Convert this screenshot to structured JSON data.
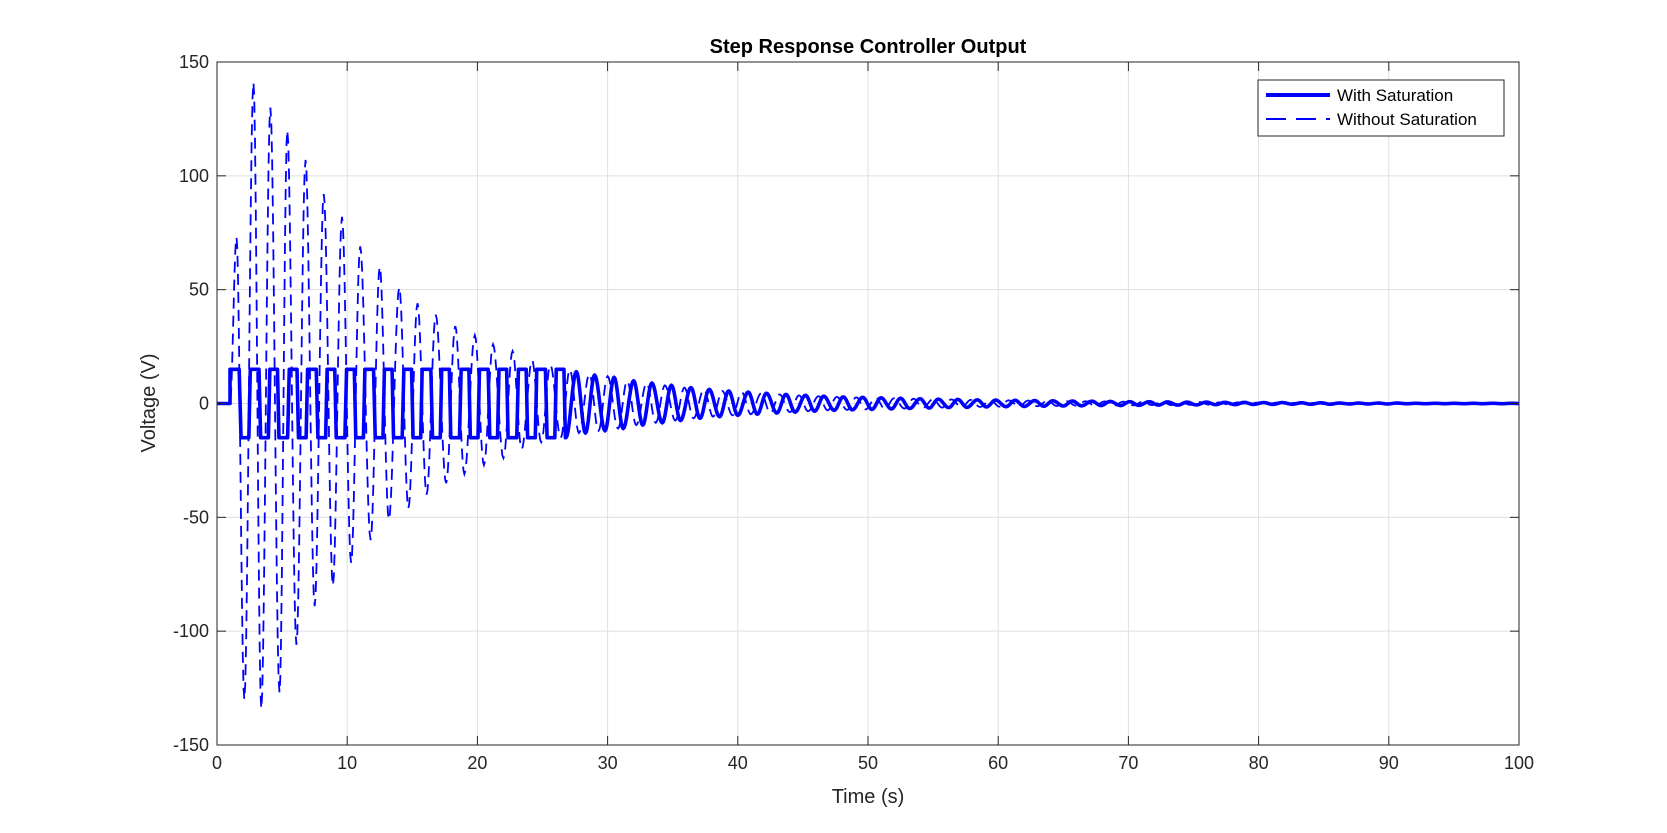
{
  "chart_data": {
    "type": "line",
    "title": "Step Response Controller Output",
    "xlabel": "Time (s)",
    "ylabel": "Voltage (V)",
    "xlim": [
      0,
      100
    ],
    "ylim": [
      -150,
      150
    ],
    "xticks": [
      0,
      10,
      20,
      30,
      40,
      50,
      60,
      70,
      80,
      90,
      100
    ],
    "yticks": [
      -150,
      -100,
      -50,
      0,
      50,
      100,
      150
    ],
    "grid": true,
    "legend_position": "top-right",
    "line_color": "#0000ff",
    "series": [
      {
        "name": "With Saturation",
        "style": "solid",
        "note_saturation_limit": 15,
        "peaks": [
          [
            1.0,
            15
          ],
          [
            1.9,
            -15
          ],
          [
            2.6,
            15
          ],
          [
            3.4,
            -15
          ],
          [
            4.1,
            15
          ],
          [
            4.8,
            -15
          ],
          [
            5.6,
            15
          ],
          [
            6.3,
            -15
          ],
          [
            7.0,
            15
          ],
          [
            7.8,
            -15
          ],
          [
            8.5,
            15
          ],
          [
            9.2,
            -15
          ],
          [
            10.0,
            15
          ],
          [
            10.7,
            -15
          ],
          [
            11.4,
            15
          ],
          [
            12.2,
            -15
          ],
          [
            12.9,
            15
          ],
          [
            13.6,
            -15
          ],
          [
            14.4,
            15
          ],
          [
            15.1,
            -15
          ],
          [
            15.8,
            15
          ],
          [
            16.6,
            -15
          ],
          [
            17.3,
            15
          ],
          [
            18.0,
            -15
          ],
          [
            18.8,
            15
          ],
          [
            19.5,
            -15
          ],
          [
            20.2,
            15
          ],
          [
            21.0,
            -15
          ],
          [
            21.7,
            15
          ],
          [
            22.4,
            -15
          ],
          [
            23.2,
            15
          ],
          [
            23.9,
            -15
          ],
          [
            24.6,
            15
          ],
          [
            25.4,
            -15
          ],
          [
            26.1,
            15
          ],
          [
            26.8,
            -15
          ],
          [
            27.6,
            14
          ],
          [
            28.3,
            -13
          ],
          [
            29.0,
            12.5
          ],
          [
            29.8,
            -12
          ],
          [
            30.5,
            11.5
          ],
          [
            31.2,
            -11
          ],
          [
            32.0,
            10
          ],
          [
            32.7,
            -9.5
          ],
          [
            33.4,
            9
          ],
          [
            34.2,
            -8.5
          ],
          [
            34.9,
            8
          ],
          [
            35.6,
            -7.5
          ],
          [
            36.4,
            7
          ],
          [
            37.1,
            -6.5
          ],
          [
            37.8,
            6.2
          ],
          [
            38.6,
            -5.8
          ],
          [
            39.3,
            5.5
          ],
          [
            40.0,
            -5.2
          ],
          [
            40.8,
            5
          ],
          [
            41.5,
            -4.7
          ],
          [
            42.2,
            4.5
          ],
          [
            43.0,
            -4.2
          ],
          [
            43.7,
            4
          ],
          [
            44.4,
            -3.8
          ],
          [
            45.2,
            3.6
          ],
          [
            45.9,
            -3.4
          ],
          [
            46.6,
            3.2
          ],
          [
            47.4,
            -3
          ],
          [
            48.1,
            2.9
          ],
          [
            48.8,
            -2.8
          ],
          [
            49.6,
            2.7
          ],
          [
            50.3,
            -2.6
          ],
          [
            51.0,
            2.5
          ],
          [
            51.8,
            -2.4
          ],
          [
            52.5,
            2.3
          ],
          [
            53.2,
            -2.2
          ],
          [
            54.0,
            2.1
          ],
          [
            54.7,
            -2.0
          ],
          [
            55.4,
            1.9
          ],
          [
            56.2,
            -1.8
          ],
          [
            56.9,
            1.8
          ],
          [
            57.6,
            -1.7
          ],
          [
            58.4,
            1.6
          ],
          [
            59.1,
            -1.5
          ],
          [
            59.8,
            1.5
          ],
          [
            60.6,
            -1.4
          ],
          [
            61.3,
            1.4
          ],
          [
            62.0,
            -1.3
          ],
          [
            62.8,
            1.3
          ],
          [
            63.5,
            -1.2
          ],
          [
            64.2,
            1.2
          ],
          [
            65.0,
            -1.1
          ],
          [
            65.7,
            1.1
          ],
          [
            66.4,
            -1.0
          ],
          [
            67.2,
            1.0
          ],
          [
            67.9,
            -0.9
          ],
          [
            68.6,
            0.9
          ],
          [
            69.4,
            -0.9
          ],
          [
            70.1,
            0.8
          ],
          [
            70.8,
            -0.8
          ],
          [
            71.6,
            0.8
          ],
          [
            72.3,
            -0.7
          ],
          [
            73.0,
            0.7
          ],
          [
            73.8,
            -0.7
          ],
          [
            74.5,
            0.6
          ],
          [
            75.2,
            -0.6
          ],
          [
            76.0,
            0.6
          ],
          [
            76.7,
            -0.5
          ],
          [
            77.4,
            0.5
          ],
          [
            78.2,
            -0.5
          ],
          [
            78.9,
            0.5
          ],
          [
            79.6,
            -0.4
          ],
          [
            80.4,
            0.4
          ],
          [
            81.1,
            -0.4
          ],
          [
            81.8,
            0.4
          ],
          [
            82.6,
            -0.3
          ],
          [
            83.3,
            0.3
          ],
          [
            84.0,
            -0.3
          ],
          [
            84.8,
            0.3
          ],
          [
            85.5,
            -0.3
          ],
          [
            86.2,
            0.2
          ],
          [
            87.0,
            -0.2
          ],
          [
            87.7,
            0.2
          ],
          [
            88.4,
            -0.2
          ],
          [
            89.2,
            0.2
          ],
          [
            89.9,
            -0.2
          ],
          [
            90.6,
            0.2
          ],
          [
            91.4,
            -0.1
          ],
          [
            92.1,
            0.1
          ],
          [
            92.8,
            -0.1
          ],
          [
            93.6,
            0.1
          ],
          [
            94.3,
            -0.1
          ],
          [
            95.0,
            0.1
          ],
          [
            95.8,
            -0.1
          ],
          [
            96.5,
            0.1
          ],
          [
            97.2,
            -0.1
          ],
          [
            98.0,
            0.1
          ],
          [
            98.7,
            -0.1
          ],
          [
            99.4,
            0.1
          ],
          [
            100.0,
            0
          ]
        ]
      },
      {
        "name": "Without Saturation",
        "style": "dashed",
        "peaks": [
          [
            1.0,
            0
          ],
          [
            1.5,
            73
          ],
          [
            2.1,
            -130
          ],
          [
            2.8,
            141
          ],
          [
            3.4,
            -134
          ],
          [
            4.1,
            130
          ],
          [
            4.8,
            -127
          ],
          [
            5.4,
            120
          ],
          [
            6.1,
            -106
          ],
          [
            6.8,
            107
          ],
          [
            7.5,
            -89
          ],
          [
            8.2,
            92
          ],
          [
            8.9,
            -80
          ],
          [
            9.6,
            82
          ],
          [
            10.3,
            -70
          ],
          [
            11.0,
            69
          ],
          [
            11.8,
            -60
          ],
          [
            12.5,
            60
          ],
          [
            13.2,
            -51
          ],
          [
            14.0,
            51
          ],
          [
            14.7,
            -46
          ],
          [
            15.4,
            44
          ],
          [
            16.1,
            -40
          ],
          [
            16.8,
            39
          ],
          [
            17.6,
            -35
          ],
          [
            18.3,
            34
          ],
          [
            19.0,
            -31
          ],
          [
            19.8,
            30
          ],
          [
            20.5,
            -27
          ],
          [
            21.2,
            26
          ],
          [
            22.0,
            -24
          ],
          [
            22.7,
            23
          ],
          [
            23.4,
            -20
          ],
          [
            24.2,
            19
          ],
          [
            24.9,
            -17
          ],
          [
            25.6,
            17
          ],
          [
            26.4,
            -15
          ],
          [
            27.1,
            15
          ],
          [
            27.8,
            -13
          ],
          [
            28.6,
            13
          ],
          [
            29.3,
            -12
          ],
          [
            30.0,
            12
          ],
          [
            30.8,
            -11
          ],
          [
            31.5,
            10
          ],
          [
            32.2,
            -9.5
          ],
          [
            33.0,
            9
          ],
          [
            33.7,
            -8.5
          ],
          [
            34.4,
            8
          ],
          [
            35.2,
            -7.5
          ],
          [
            35.9,
            7
          ],
          [
            36.6,
            -6.5
          ],
          [
            37.4,
            6.2
          ],
          [
            38.1,
            -5.8
          ],
          [
            38.8,
            5.5
          ],
          [
            39.6,
            -5.2
          ],
          [
            40.3,
            5
          ],
          [
            41.0,
            -4.7
          ],
          [
            41.8,
            4.5
          ],
          [
            42.5,
            -4.2
          ],
          [
            43.2,
            4
          ],
          [
            44.0,
            -3.8
          ],
          [
            44.7,
            3.6
          ],
          [
            45.4,
            -3.4
          ],
          [
            46.2,
            3.2
          ],
          [
            46.9,
            -3
          ],
          [
            47.6,
            2.9
          ],
          [
            48.4,
            -2.8
          ],
          [
            49.1,
            2.7
          ],
          [
            49.8,
            -2.6
          ],
          [
            50.6,
            2.5
          ],
          [
            51.3,
            -2.4
          ],
          [
            52.0,
            2.3
          ],
          [
            52.8,
            -2.2
          ],
          [
            53.5,
            2.1
          ],
          [
            54.2,
            -2.0
          ],
          [
            55.0,
            1.9
          ],
          [
            55.7,
            -1.8
          ],
          [
            56.4,
            1.8
          ],
          [
            57.2,
            -1.7
          ],
          [
            57.9,
            1.6
          ],
          [
            58.6,
            -1.5
          ],
          [
            59.4,
            1.5
          ],
          [
            60.1,
            -1.4
          ],
          [
            60.8,
            1.4
          ],
          [
            61.6,
            -1.3
          ],
          [
            62.3,
            1.3
          ],
          [
            63.0,
            -1.2
          ],
          [
            63.8,
            1.2
          ],
          [
            64.5,
            -1.1
          ],
          [
            65.2,
            1.1
          ],
          [
            66.0,
            -1.0
          ],
          [
            66.7,
            1.0
          ],
          [
            67.4,
            -0.9
          ],
          [
            68.2,
            0.9
          ],
          [
            68.9,
            -0.9
          ],
          [
            69.6,
            0.8
          ],
          [
            70.4,
            -0.8
          ],
          [
            71.1,
            0.8
          ],
          [
            71.8,
            -0.7
          ],
          [
            72.6,
            0.7
          ],
          [
            73.3,
            -0.7
          ],
          [
            74.0,
            0.6
          ],
          [
            74.8,
            -0.6
          ],
          [
            75.5,
            0.6
          ],
          [
            76.2,
            -0.5
          ],
          [
            77.0,
            0.5
          ],
          [
            77.7,
            -0.5
          ],
          [
            78.4,
            0.5
          ],
          [
            79.2,
            -0.4
          ],
          [
            79.9,
            0.4
          ],
          [
            80.6,
            -0.4
          ],
          [
            81.4,
            0.4
          ],
          [
            82.1,
            -0.3
          ],
          [
            82.8,
            0.3
          ],
          [
            83.6,
            -0.3
          ],
          [
            84.3,
            0.3
          ],
          [
            85.0,
            -0.3
          ],
          [
            85.8,
            0.2
          ],
          [
            86.5,
            -0.2
          ],
          [
            87.2,
            0.2
          ],
          [
            88.0,
            -0.2
          ],
          [
            88.7,
            0.2
          ],
          [
            89.4,
            -0.2
          ],
          [
            90.2,
            0.2
          ],
          [
            90.9,
            -0.1
          ],
          [
            91.6,
            0.1
          ],
          [
            92.4,
            -0.1
          ],
          [
            93.1,
            0.1
          ],
          [
            93.8,
            -0.1
          ],
          [
            94.6,
            0.1
          ],
          [
            95.3,
            -0.1
          ],
          [
            96.0,
            0.1
          ],
          [
            96.8,
            -0.1
          ],
          [
            97.5,
            0.1
          ],
          [
            98.2,
            -0.1
          ],
          [
            99.0,
            0.1
          ],
          [
            100.0,
            0
          ]
        ]
      }
    ]
  }
}
